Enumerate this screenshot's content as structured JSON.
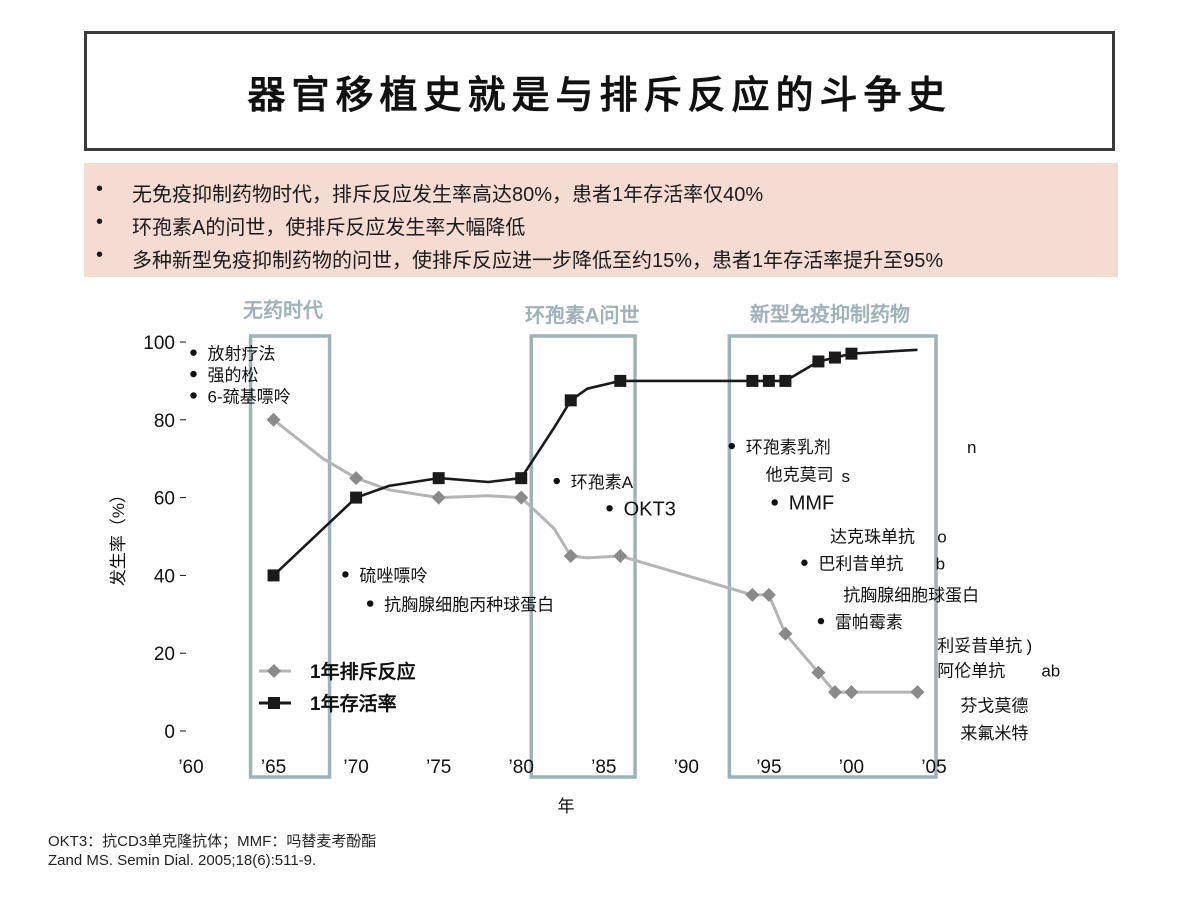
{
  "slide": {
    "title": "器官移植史就是与排斥反应的斗争史",
    "bullets": [
      "无免疫抑制药物时代，排斥反应发生率高达80%，患者1年存活率仅40%",
      "环孢素A的问世，使排斥反应发生率大幅降低",
      "多种新型免疫抑制药物的问世，使排斥反应进一步降低至约15%，患者1年存活率提升至95%"
    ],
    "bullet_symbol": "•",
    "eras": [
      "无药时代",
      "环孢素A问世",
      "新型免疫抑制药物"
    ],
    "footnotes": [
      "OKT3：抗CD3单克隆抗体；MMF：吗替麦考酚酯",
      "Zand MS. Semin Dial. 2005;18(6):511-9."
    ],
    "box_color": "#9fb2b8"
  },
  "chart_data": {
    "type": "line",
    "xlabel": "年",
    "ylabel": "发生率（%）",
    "xlim": [
      1960,
      2005
    ],
    "ylim": [
      0,
      100
    ],
    "x_ticks": [
      1960,
      1965,
      1970,
      1975,
      1980,
      1985,
      1990,
      1995,
      2000,
      2005
    ],
    "x_tick_labels": [
      "’60",
      "’65",
      "’70",
      "’75",
      "’80",
      "’85",
      "’90",
      "’95",
      "’00",
      "’05"
    ],
    "y_ticks": [
      0,
      20,
      40,
      60,
      80,
      100
    ],
    "series": [
      {
        "name": "1年排斥反应",
        "color": "#b5b5b5",
        "marker": "diamond",
        "marker_color": "#8a8a8a",
        "line": [
          [
            1965,
            80
          ],
          [
            1968,
            70
          ],
          [
            1970,
            65
          ],
          [
            1972,
            62
          ],
          [
            1975,
            60
          ],
          [
            1978,
            60.5
          ],
          [
            1980,
            60
          ],
          [
            1982,
            52
          ],
          [
            1983,
            45
          ],
          [
            1984,
            44.5
          ],
          [
            1986,
            45
          ],
          [
            1994,
            35
          ],
          [
            1995,
            35
          ],
          [
            1996,
            25
          ],
          [
            1998,
            15
          ],
          [
            1999,
            10
          ],
          [
            2000,
            10
          ],
          [
            2004,
            10
          ]
        ],
        "points": [
          [
            1965,
            80
          ],
          [
            1970,
            65
          ],
          [
            1975,
            60
          ],
          [
            1980,
            60
          ],
          [
            1983,
            45
          ],
          [
            1986,
            45
          ],
          [
            1994,
            35
          ],
          [
            1995,
            35
          ],
          [
            1996,
            25
          ],
          [
            1998,
            15
          ],
          [
            1999,
            10
          ],
          [
            2000,
            10
          ],
          [
            2004,
            10
          ]
        ]
      },
      {
        "name": "1年存活率",
        "color": "#1a1a1a",
        "marker": "square",
        "marker_color": "#1a1a1a",
        "line": [
          [
            1965,
            40
          ],
          [
            1968,
            52
          ],
          [
            1970,
            60
          ],
          [
            1972,
            63
          ],
          [
            1975,
            65
          ],
          [
            1978,
            64
          ],
          [
            1980,
            65
          ],
          [
            1982,
            78
          ],
          [
            1983,
            85
          ],
          [
            1984,
            88
          ],
          [
            1986,
            90
          ],
          [
            1990,
            90
          ],
          [
            1994,
            90
          ],
          [
            1995,
            90
          ],
          [
            1996,
            90
          ],
          [
            1998,
            95
          ],
          [
            1999,
            96
          ],
          [
            2000,
            97
          ],
          [
            2004,
            98
          ]
        ],
        "points": [
          [
            1965,
            40
          ],
          [
            1970,
            60
          ],
          [
            1975,
            65
          ],
          [
            1980,
            65
          ],
          [
            1983,
            85
          ],
          [
            1986,
            90
          ],
          [
            1994,
            90
          ],
          [
            1995,
            90
          ],
          [
            1996,
            90
          ],
          [
            1998,
            95
          ],
          [
            1999,
            96
          ],
          [
            2000,
            97
          ]
        ]
      }
    ],
    "era_boxes": [
      [
        1965,
        1967
      ],
      [
        1982,
        1985.5
      ],
      [
        1994,
        2005
      ]
    ],
    "annotations": [
      {
        "text": "放射疗法",
        "x": 1961,
        "y": 97,
        "dot": true
      },
      {
        "text": "强的松",
        "x": 1961,
        "y": 91.5,
        "dot": true
      },
      {
        "text": "6-巯基嘌呤",
        "x": 1961,
        "y": 86,
        "dot": true
      },
      {
        "text": "硫唑嘌呤",
        "x": 1970.2,
        "y": 40,
        "dot": true
      },
      {
        "text": "抗胸腺细胞丙种球蛋白",
        "x": 1971.7,
        "y": 32.5,
        "dot": true
      },
      {
        "text": "环孢素A",
        "x": 1983,
        "y": 64,
        "dot": true
      },
      {
        "text": "OKT3",
        "x": 1986.2,
        "y": 57,
        "dot": true,
        "large": true
      },
      {
        "text": "环孢素乳剂",
        "x": 1993.6,
        "y": 73,
        "dot": true
      },
      {
        "text": "他克莫司",
        "x": 1994.8,
        "y": 66
      },
      {
        "text": "s",
        "x": 1999.4,
        "y": 65.5
      },
      {
        "text": "n",
        "x": 2007,
        "y": 73,
        "clip": true
      },
      {
        "text": "MMF",
        "x": 1996.2,
        "y": 58.5,
        "dot": true,
        "large": true
      },
      {
        "text": "达克珠单抗",
        "x": 1998.7,
        "y": 50
      },
      {
        "text": "o",
        "x": 2005.2,
        "y": 50
      },
      {
        "text": "巴利昔单抗",
        "x": 1998,
        "y": 43,
        "dot": true
      },
      {
        "text": "b",
        "x": 2005.1,
        "y": 43
      },
      {
        "text": "抗胸腺细胞球蛋白",
        "x": 1999.5,
        "y": 35
      },
      {
        "text": "雷帕霉素",
        "x": 1999,
        "y": 28,
        "dot": true
      },
      {
        "text": "利妥昔单抗",
        "x": 2005.2,
        "y": 22
      },
      {
        "text": ")",
        "x": 2010.6,
        "y": 22
      },
      {
        "text": "阿伦单抗",
        "x": 2005.2,
        "y": 15.5
      },
      {
        "text": "ab",
        "x": 2011.5,
        "y": 15.5
      },
      {
        "text": "芬戈莫德",
        "x": 2006.6,
        "y": 6.5
      },
      {
        "text": "来氟米特",
        "x": 2006.6,
        "y": -0.5
      }
    ],
    "legend": {
      "position": "bottom-left"
    }
  }
}
